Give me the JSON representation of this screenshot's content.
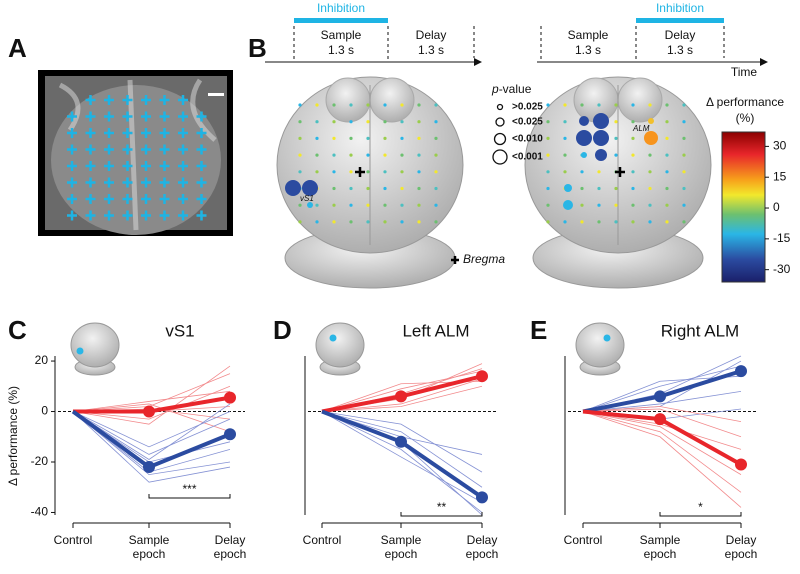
{
  "panel_labels": [
    "A",
    "B",
    "C",
    "D",
    "E"
  ],
  "timeline_left": {
    "inhibition": "Inhibition",
    "sample": "Sample",
    "sample_dur": "1.3 s",
    "delay": "Delay",
    "delay_dur": "1.3 s"
  },
  "timeline_right": {
    "inhibition": "Inhibition",
    "sample": "Sample",
    "sample_dur": "1.3 s",
    "delay": "Delay",
    "delay_dur": "1.3 s",
    "time": "Time"
  },
  "pvalue_legend": {
    "title_p": "p",
    "title_rest": "-value",
    "items": [
      ">0.025",
      "<0.025",
      "<0.010",
      "<0.001"
    ]
  },
  "brain_labels": {
    "vs1": "vS1",
    "alm": "ALM",
    "bregma": "Bregma"
  },
  "colorbar": {
    "title": "Δ performance",
    "unit": "(%)",
    "lim": [
      -36,
      37
    ],
    "ticks": [
      30,
      15,
      0,
      -15,
      -30
    ]
  },
  "ylabel": "Δ performance (%)",
  "chart_data": [
    {
      "type": "line",
      "title": "vS1",
      "categories": [
        "Control",
        "Sample epoch",
        "Delay epoch"
      ],
      "ylim": [
        -41,
        22
      ],
      "yticks": [
        20,
        0,
        -20,
        -40
      ],
      "annotation": "***",
      "series": [
        {
          "color": "#e8262b",
          "values": [
            0,
            0,
            5.5
          ],
          "individuals": [
            [
              0,
              2,
              15
            ],
            [
              0,
              -3,
              10
            ],
            [
              0,
              1,
              -3
            ],
            [
              0,
              4,
              8
            ],
            [
              0,
              -5,
              18
            ],
            [
              0,
              0,
              2
            ],
            [
              0,
              3,
              -8
            ]
          ]
        },
        {
          "color": "#2b4ba0",
          "values": [
            0,
            -22,
            -9
          ],
          "individuals": [
            [
              0,
              -17,
              -3
            ],
            [
              0,
              -24,
              -15
            ],
            [
              0,
              -28,
              -22
            ],
            [
              0,
              -20,
              -12
            ],
            [
              0,
              -14,
              0
            ],
            [
              0,
              -25,
              -20
            ],
            [
              0,
              -19,
              3
            ]
          ]
        }
      ]
    },
    {
      "type": "line",
      "title": "Left ALM",
      "categories": [
        "Control",
        "Sample epoch",
        "Delay epoch"
      ],
      "ylim": [
        -41,
        22
      ],
      "annotation": "**",
      "series": [
        {
          "color": "#e8262b",
          "values": [
            0,
            6,
            14
          ],
          "individuals": [
            [
              0,
              3,
              13
            ],
            [
              0,
              9,
              16
            ],
            [
              0,
              5,
              19
            ],
            [
              0,
              2,
              10
            ],
            [
              0,
              11,
              12
            ],
            [
              0,
              7,
              17
            ]
          ]
        },
        {
          "color": "#2b4ba0",
          "values": [
            0,
            -12,
            -34
          ],
          "individuals": [
            [
              0,
              -8,
              -30
            ],
            [
              0,
              -15,
              -40
            ],
            [
              0,
              -10,
              -17
            ],
            [
              0,
              -18,
              -36
            ],
            [
              0,
              -5,
              -24
            ],
            [
              0,
              -12,
              -41
            ]
          ]
        }
      ]
    },
    {
      "type": "line",
      "title": "Right ALM",
      "categories": [
        "Control",
        "Sample epoch",
        "Delay epoch"
      ],
      "ylim": [
        -41,
        22
      ],
      "annotation": "*",
      "series": [
        {
          "color": "#2b4ba0",
          "values": [
            0,
            6,
            16
          ],
          "individuals": [
            [
              0,
              10,
              18
            ],
            [
              0,
              3,
              8
            ],
            [
              0,
              7,
              22
            ],
            [
              0,
              -3,
              1
            ],
            [
              0,
              12,
              14
            ],
            [
              0,
              2,
              20
            ]
          ]
        },
        {
          "color": "#e8262b",
          "values": [
            0,
            -3,
            -21
          ],
          "individuals": [
            [
              0,
              -8,
              -32
            ],
            [
              0,
              1,
              -10
            ],
            [
              0,
              -5,
              -15
            ],
            [
              0,
              -10,
              -38
            ],
            [
              0,
              2,
              -4
            ],
            [
              0,
              -6,
              -25
            ]
          ]
        }
      ]
    }
  ]
}
